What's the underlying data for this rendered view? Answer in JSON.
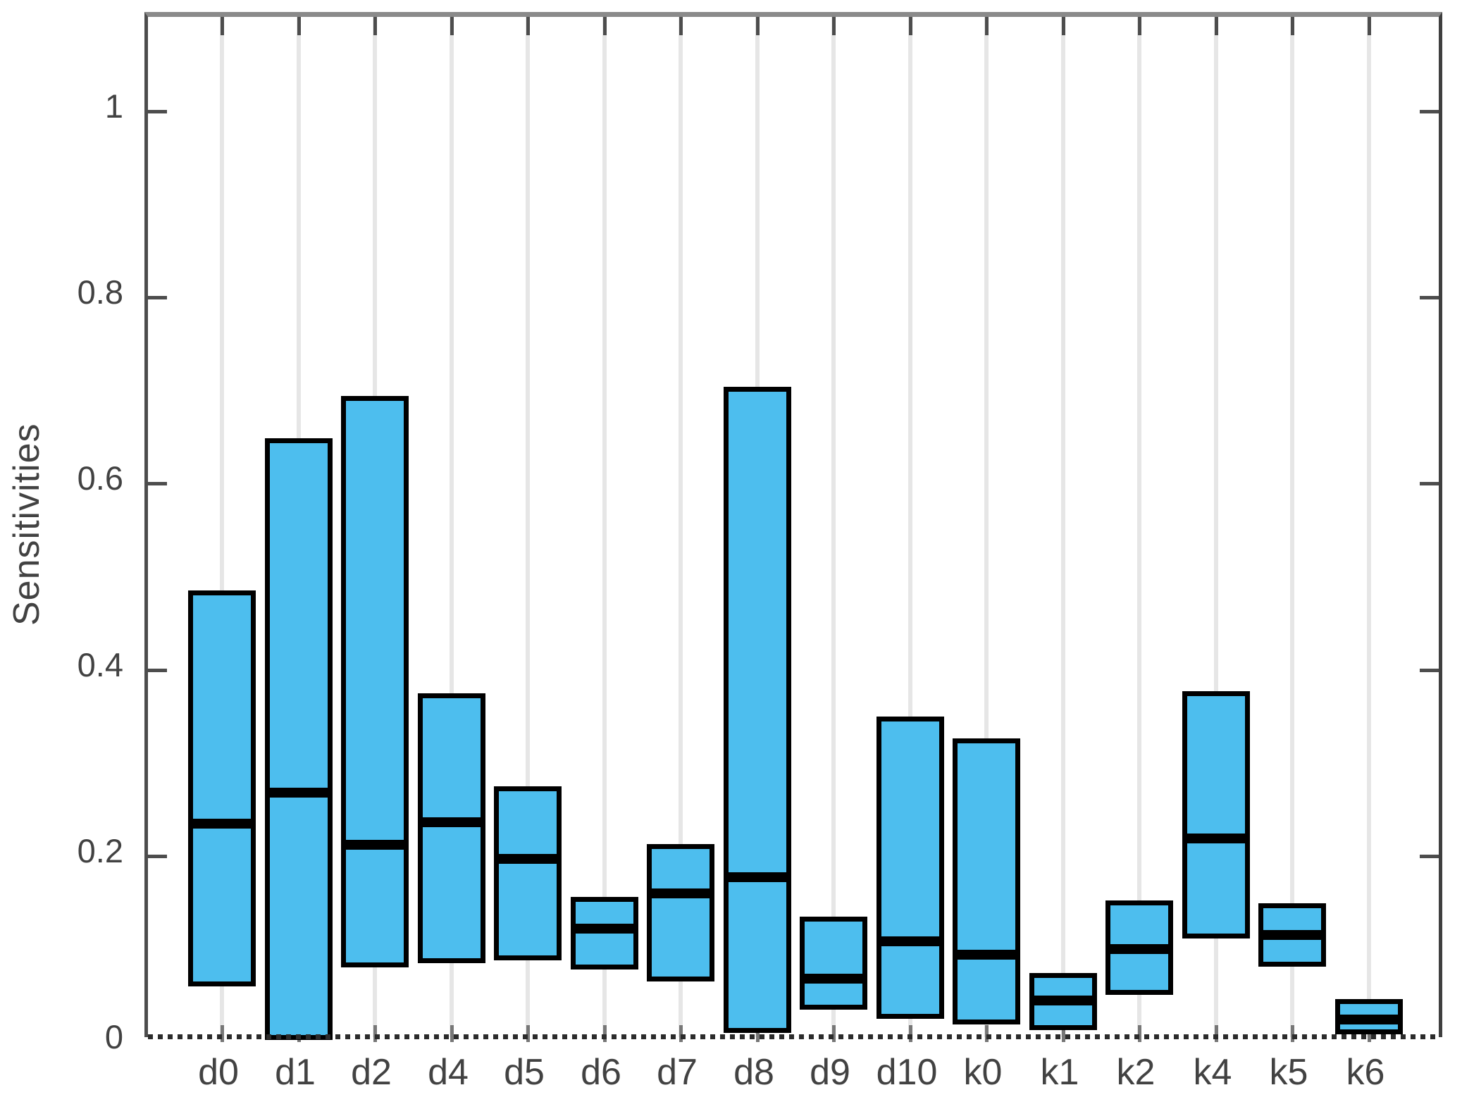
{
  "chart_data": {
    "type": "bar",
    "subtype": "floating-range-boxes-with-median",
    "title": "",
    "xlabel": "",
    "ylabel": "Sensitivities",
    "categories": [
      "d0",
      "d1",
      "d2",
      "d4",
      "d5",
      "d6",
      "d7",
      "d8",
      "d9",
      "d10",
      "k0",
      "k1",
      "k2",
      "k4",
      "k5",
      "k6"
    ],
    "series": [
      {
        "name": "lower",
        "values": [
          0.06,
          0.002,
          0.08,
          0.085,
          0.088,
          0.078,
          0.065,
          0.01,
          0.035,
          0.025,
          0.019,
          0.013,
          0.051,
          0.111,
          0.081,
          0.008
        ]
      },
      {
        "name": "median",
        "values": [
          0.235,
          0.268,
          0.212,
          0.236,
          0.197,
          0.122,
          0.16,
          0.177,
          0.068,
          0.108,
          0.094,
          0.045,
          0.1,
          0.219,
          0.115,
          0.024
        ]
      },
      {
        "name": "upper",
        "values": [
          0.485,
          0.649,
          0.694,
          0.375,
          0.275,
          0.156,
          0.213,
          0.704,
          0.135,
          0.35,
          0.326,
          0.074,
          0.152,
          0.377,
          0.149,
          0.046
        ]
      }
    ],
    "ylim": [
      0,
      1.1
    ],
    "yticks": [
      0,
      0.2,
      0.4,
      0.6,
      0.8,
      1
    ],
    "ytick_labels": [
      "0",
      "0.2",
      "0.4",
      "0.6",
      "0.8",
      "1"
    ],
    "grid": "vertical",
    "legend": "none",
    "colors": {
      "box_fill": "#4DBEEE",
      "box_edge": "#000000",
      "median_line": "#000000",
      "grid_line": "#e6e6e6",
      "axis_dark": "#3f3f3f",
      "axis_top": "#8a8a8a",
      "category_tick": "#777777",
      "tick_label": "#424242",
      "background": "#ffffff"
    }
  }
}
